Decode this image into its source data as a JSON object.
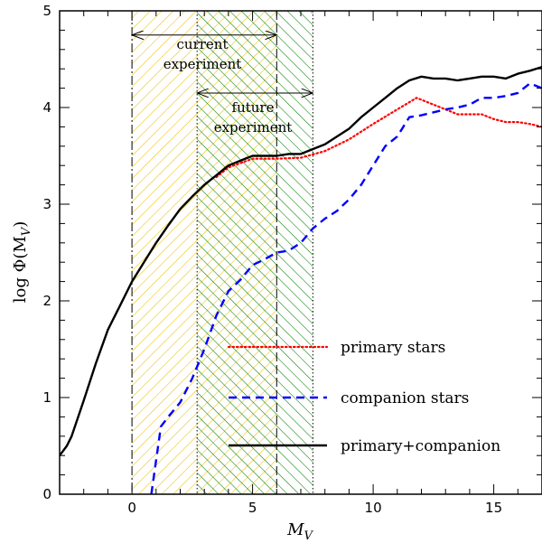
{
  "chart_data": {
    "type": "line",
    "xlabel": "M",
    "xlabel_sub": "V",
    "ylabel": "log Φ(M",
    "ylabel_sub": "V",
    "ylabel_close": ")",
    "xlim": [
      -3,
      17
    ],
    "ylim": [
      0,
      5
    ],
    "xticks": [
      0,
      5,
      10,
      15
    ],
    "yticks": [
      0,
      1,
      2,
      3,
      4,
      5
    ],
    "legend_position": "lower-right",
    "series": [
      {
        "name": "primary stars",
        "color": "#ff0000",
        "style": "dotted",
        "x": [
          3.5,
          4.0,
          5.0,
          6.0,
          7.0,
          8.0,
          9.0,
          10.0,
          11.0,
          11.8,
          12.5,
          13.0,
          13.5,
          14.0,
          14.5,
          15.0,
          15.5,
          16.0,
          16.5,
          17.0
        ],
        "y": [
          3.28,
          3.38,
          3.47,
          3.47,
          3.48,
          3.55,
          3.67,
          3.83,
          3.98,
          4.1,
          4.03,
          3.98,
          3.93,
          3.93,
          3.93,
          3.88,
          3.85,
          3.85,
          3.83,
          3.8
        ]
      },
      {
        "name": "companion stars",
        "color": "#0000ff",
        "style": "dashed",
        "x": [
          0.8,
          1.0,
          1.2,
          1.5,
          2.0,
          2.5,
          3.0,
          3.5,
          4.0,
          4.5,
          5.0,
          5.5,
          6.0,
          6.5,
          7.0,
          7.5,
          8.0,
          8.5,
          9.0,
          9.5,
          10.0,
          10.5,
          11.0,
          11.5,
          12.0,
          12.5,
          13.0,
          13.5,
          14.0,
          14.5,
          15.0,
          15.5,
          16.0,
          16.5,
          17.0
        ],
        "y": [
          0.0,
          0.35,
          0.7,
          0.8,
          0.95,
          1.2,
          1.5,
          1.85,
          2.1,
          2.22,
          2.37,
          2.43,
          2.5,
          2.52,
          2.6,
          2.75,
          2.85,
          2.93,
          3.05,
          3.2,
          3.4,
          3.6,
          3.7,
          3.9,
          3.92,
          3.95,
          3.98,
          4.0,
          4.03,
          4.1,
          4.1,
          4.12,
          4.15,
          4.25,
          4.2
        ]
      },
      {
        "name": "primary+companion",
        "color": "#000000",
        "style": "solid",
        "x": [
          -3.0,
          -2.7,
          -2.5,
          -2.0,
          -1.5,
          -1.0,
          -0.5,
          0.0,
          0.5,
          1.0,
          1.5,
          2.0,
          2.5,
          3.0,
          3.5,
          4.0,
          4.5,
          5.0,
          5.5,
          6.0,
          6.5,
          7.0,
          7.5,
          8.0,
          8.5,
          9.0,
          9.5,
          10.0,
          10.5,
          11.0,
          11.5,
          12.0,
          12.5,
          13.0,
          13.5,
          14.0,
          14.5,
          15.0,
          15.5,
          16.0,
          16.5,
          17.0
        ],
        "y": [
          0.4,
          0.5,
          0.6,
          0.97,
          1.35,
          1.7,
          1.95,
          2.2,
          2.4,
          2.6,
          2.78,
          2.95,
          3.08,
          3.2,
          3.3,
          3.4,
          3.45,
          3.5,
          3.5,
          3.5,
          3.52,
          3.52,
          3.57,
          3.62,
          3.7,
          3.78,
          3.9,
          4.0,
          4.1,
          4.2,
          4.28,
          4.32,
          4.3,
          4.3,
          4.28,
          4.3,
          4.32,
          4.32,
          4.3,
          4.35,
          4.38,
          4.42
        ]
      }
    ],
    "regions": [
      {
        "name": "current experiment",
        "x_range": [
          0,
          6
        ],
        "color": "#f0c000",
        "hatch": "forward"
      },
      {
        "name": "future experiment",
        "x_range": [
          2.7,
          7.5
        ],
        "color": "#008000",
        "hatch": "backward"
      }
    ],
    "annotations": [
      {
        "label_line1": "current",
        "label_line2": "experiment",
        "arrow_from_x": 0,
        "arrow_to_x": 6,
        "arrow_y": 4.75
      },
      {
        "label_line1": "future",
        "label_line2": "experiment",
        "arrow_from_x": 2.7,
        "arrow_to_x": 7.5,
        "arrow_y": 4.15
      }
    ]
  }
}
